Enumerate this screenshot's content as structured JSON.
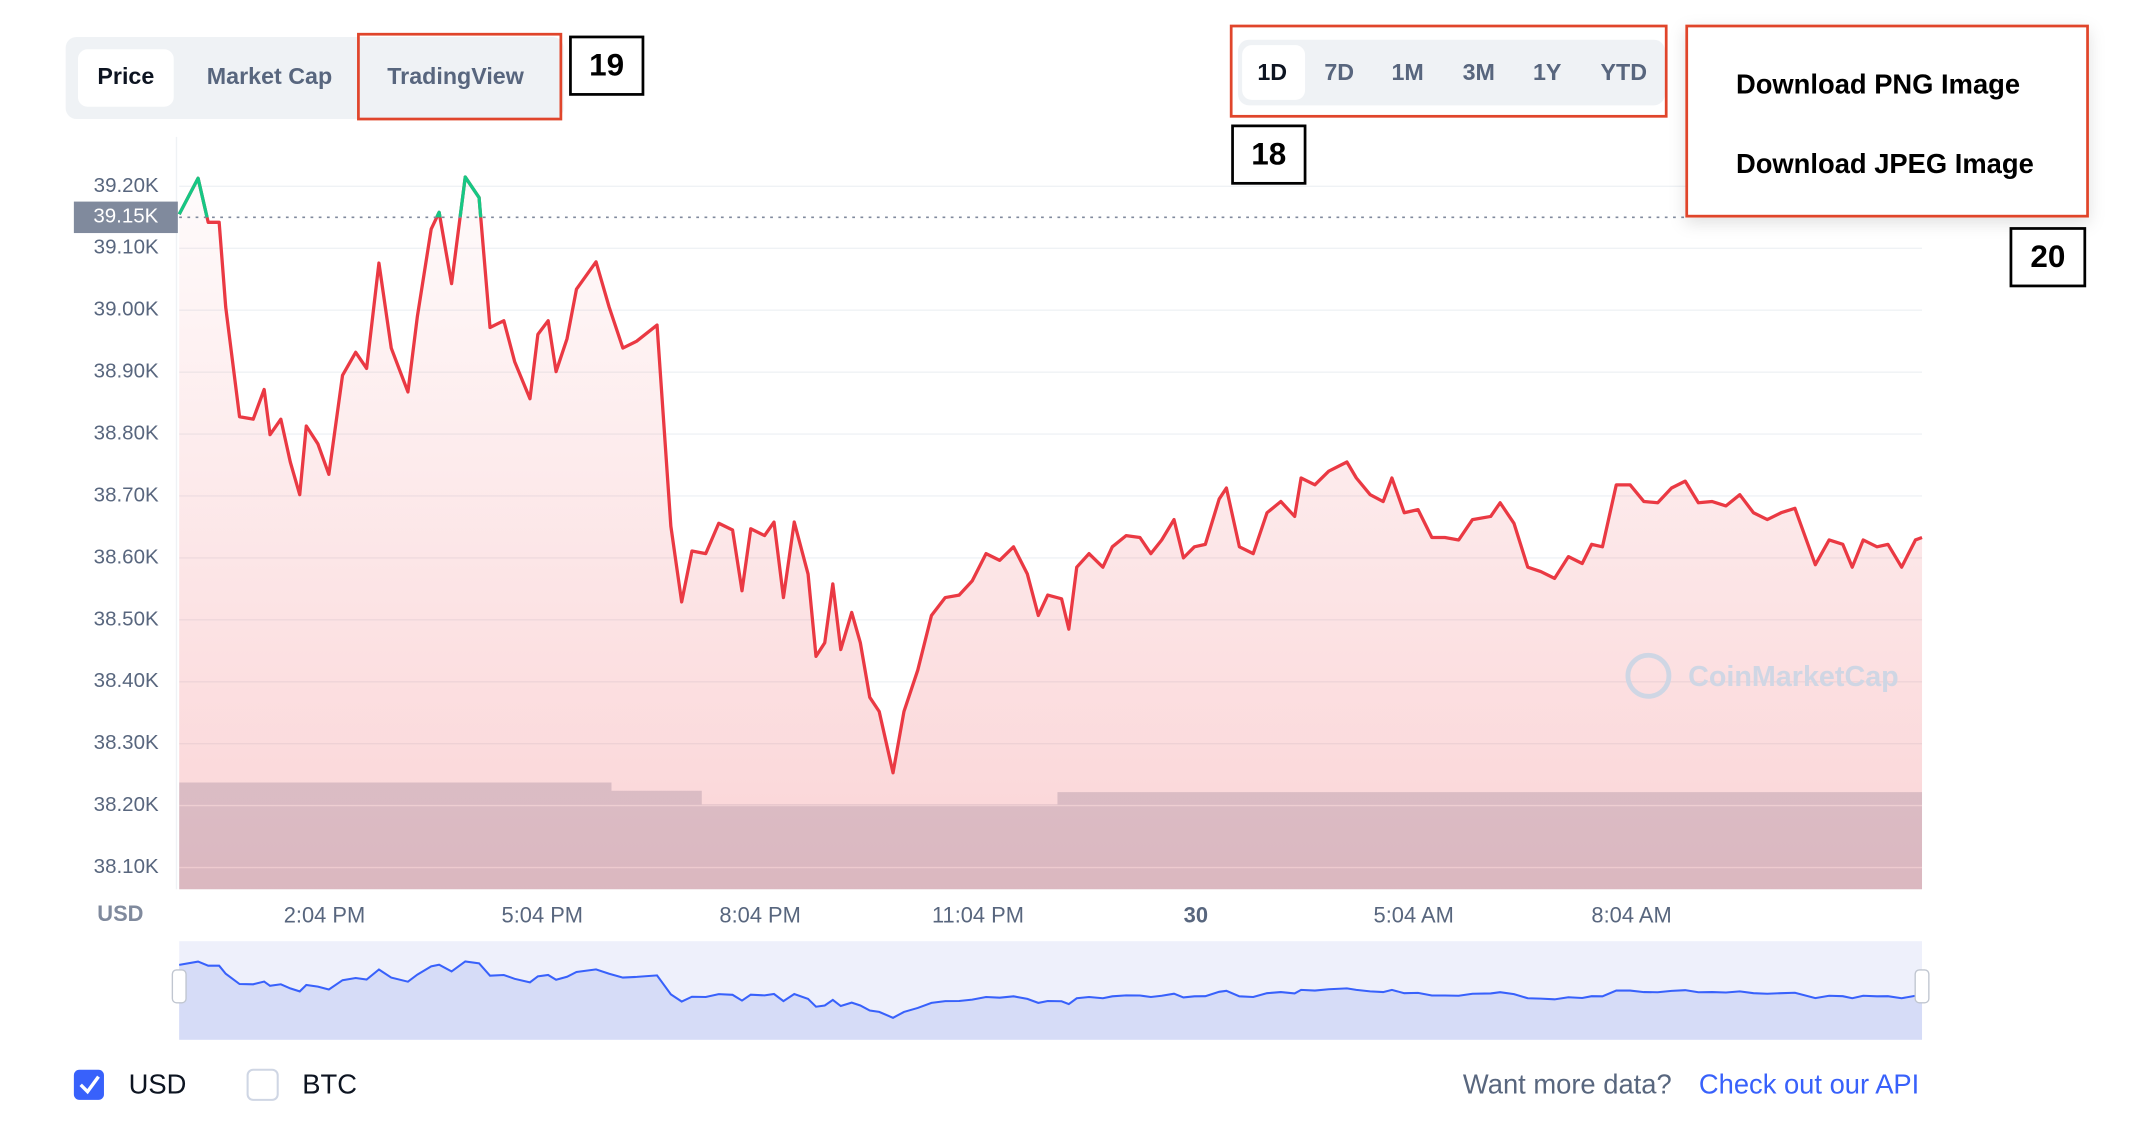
{
  "tabs": [
    "Price",
    "Market Cap",
    "TradingView"
  ],
  "range_buttons": [
    "1D",
    "7D",
    "1M",
    "3M",
    "1Y",
    "YTD"
  ],
  "download_menu": [
    "Download PNG Image",
    "Download JPEG Image"
  ],
  "annotations": [
    "18",
    "19",
    "20"
  ],
  "chart_data": {
    "type": "line",
    "color": "#ea3943",
    "up_color": "#16c784",
    "grid": true,
    "x_axis_label": "USD",
    "watermark": "CoinMarketCap",
    "reference_line": {
      "value": 39150,
      "label": "39.15K"
    },
    "xlim": [
      0,
      24
    ],
    "xticks": [
      {
        "value": 2,
        "label": "2:04 PM"
      },
      {
        "value": 5,
        "label": "5:04 PM"
      },
      {
        "value": 8,
        "label": "8:04 PM"
      },
      {
        "value": 11,
        "label": "11:04 PM"
      },
      {
        "value": 14,
        "label": "30"
      },
      {
        "value": 17,
        "label": "5:04 AM"
      },
      {
        "value": 20,
        "label": "8:04 AM"
      }
    ],
    "ylim": [
      38065,
      39280
    ],
    "yticks": [
      {
        "value": 38100,
        "label": "38.10K"
      },
      {
        "value": 38200,
        "label": "38.20K"
      },
      {
        "value": 38300,
        "label": "38.30K"
      },
      {
        "value": 38400,
        "label": "38.40K"
      },
      {
        "value": 38500,
        "label": "38.50K"
      },
      {
        "value": 38600,
        "label": "38.60K"
      },
      {
        "value": 38700,
        "label": "38.70K"
      },
      {
        "value": 38800,
        "label": "38.80K"
      },
      {
        "value": 38900,
        "label": "38.90K"
      },
      {
        "value": 39000,
        "label": "39.00K"
      },
      {
        "value": 39100,
        "label": "39.10K"
      },
      {
        "value": 39200,
        "label": "39.20K"
      }
    ],
    "x": [
      0,
      0.26,
      0.4,
      0.55,
      0.64,
      0.83,
      1.02,
      1.17,
      1.25,
      1.4,
      1.53,
      1.66,
      1.75,
      1.91,
      2.06,
      2.25,
      2.43,
      2.58,
      2.75,
      2.92,
      3.15,
      3.28,
      3.47,
      3.58,
      3.75,
      3.94,
      4.13,
      4.28,
      4.47,
      4.62,
      4.83,
      4.94,
      5.08,
      5.19,
      5.34,
      5.47,
      5.74,
      5.92,
      6.11,
      6.3,
      6.58,
      6.77,
      6.92,
      7.06,
      7.25,
      7.43,
      7.62,
      7.75,
      7.87,
      8.06,
      8.19,
      8.32,
      8.47,
      8.66,
      8.77,
      8.89,
      9.0,
      9.11,
      9.26,
      9.38,
      9.51,
      9.64,
      9.83,
      9.98,
      10.17,
      10.36,
      10.55,
      10.74,
      10.92,
      11.11,
      11.3,
      11.49,
      11.68,
      11.83,
      11.96,
      12.15,
      12.25,
      12.36,
      12.53,
      12.72,
      12.85,
      13.04,
      13.23,
      13.38,
      13.53,
      13.7,
      13.83,
      13.98,
      14.13,
      14.32,
      14.42,
      14.6,
      14.79,
      14.98,
      15.17,
      15.36,
      15.45,
      15.64,
      15.83,
      16.08,
      16.21,
      16.4,
      16.58,
      16.7,
      16.87,
      17.06,
      17.25,
      17.43,
      17.62,
      17.81,
      18.06,
      18.19,
      18.38,
      18.57,
      18.75,
      18.94,
      19.13,
      19.32,
      19.45,
      19.6,
      19.79,
      19.98,
      20.17,
      20.36,
      20.55,
      20.74,
      20.92,
      21.11,
      21.3,
      21.49,
      21.68,
      21.87,
      22.06,
      22.25,
      22.53,
      22.72,
      22.91,
      23.04,
      23.19,
      23.38,
      23.53,
      23.72,
      23.91,
      24
    ],
    "values": [
      39155,
      39213,
      39142,
      39142,
      39005,
      38828,
      38824,
      38872,
      38799,
      38824,
      38755,
      38702,
      38813,
      38784,
      38735,
      38895,
      38932,
      38906,
      39076,
      38939,
      38868,
      38990,
      39131,
      39158,
      39043,
      39215,
      39182,
      38972,
      38983,
      38917,
      38857,
      38961,
      38983,
      38901,
      38954,
      39034,
      39078,
      39005,
      38939,
      38950,
      38976,
      38651,
      38529,
      38611,
      38607,
      38656,
      38645,
      38547,
      38647,
      38636,
      38658,
      38536,
      38658,
      38574,
      38441,
      38463,
      38558,
      38452,
      38512,
      38463,
      38375,
      38352,
      38253,
      38352,
      38419,
      38507,
      38536,
      38540,
      38563,
      38607,
      38596,
      38618,
      38574,
      38507,
      38540,
      38534,
      38485,
      38585,
      38607,
      38585,
      38618,
      38636,
      38633,
      38607,
      38629,
      38662,
      38600,
      38618,
      38622,
      38695,
      38713,
      38618,
      38607,
      38673,
      38691,
      38667,
      38729,
      38718,
      38740,
      38755,
      38729,
      38702,
      38691,
      38729,
      38673,
      38678,
      38633,
      38633,
      38629,
      38662,
      38667,
      38689,
      38656,
      38585,
      38578,
      38567,
      38602,
      38591,
      38622,
      38618,
      38718,
      38718,
      38691,
      38689,
      38713,
      38724,
      38689,
      38691,
      38684,
      38702,
      38673,
      38662,
      38673,
      38680,
      38589,
      38629,
      38622,
      38585,
      38629,
      38618,
      38622,
      38585,
      38629,
      38633
    ]
  },
  "checkboxes": [
    {
      "label": "USD",
      "checked": true
    },
    {
      "label": "BTC",
      "checked": false
    }
  ],
  "footer": {
    "text": "Want more data?",
    "link": "Check out our API"
  }
}
